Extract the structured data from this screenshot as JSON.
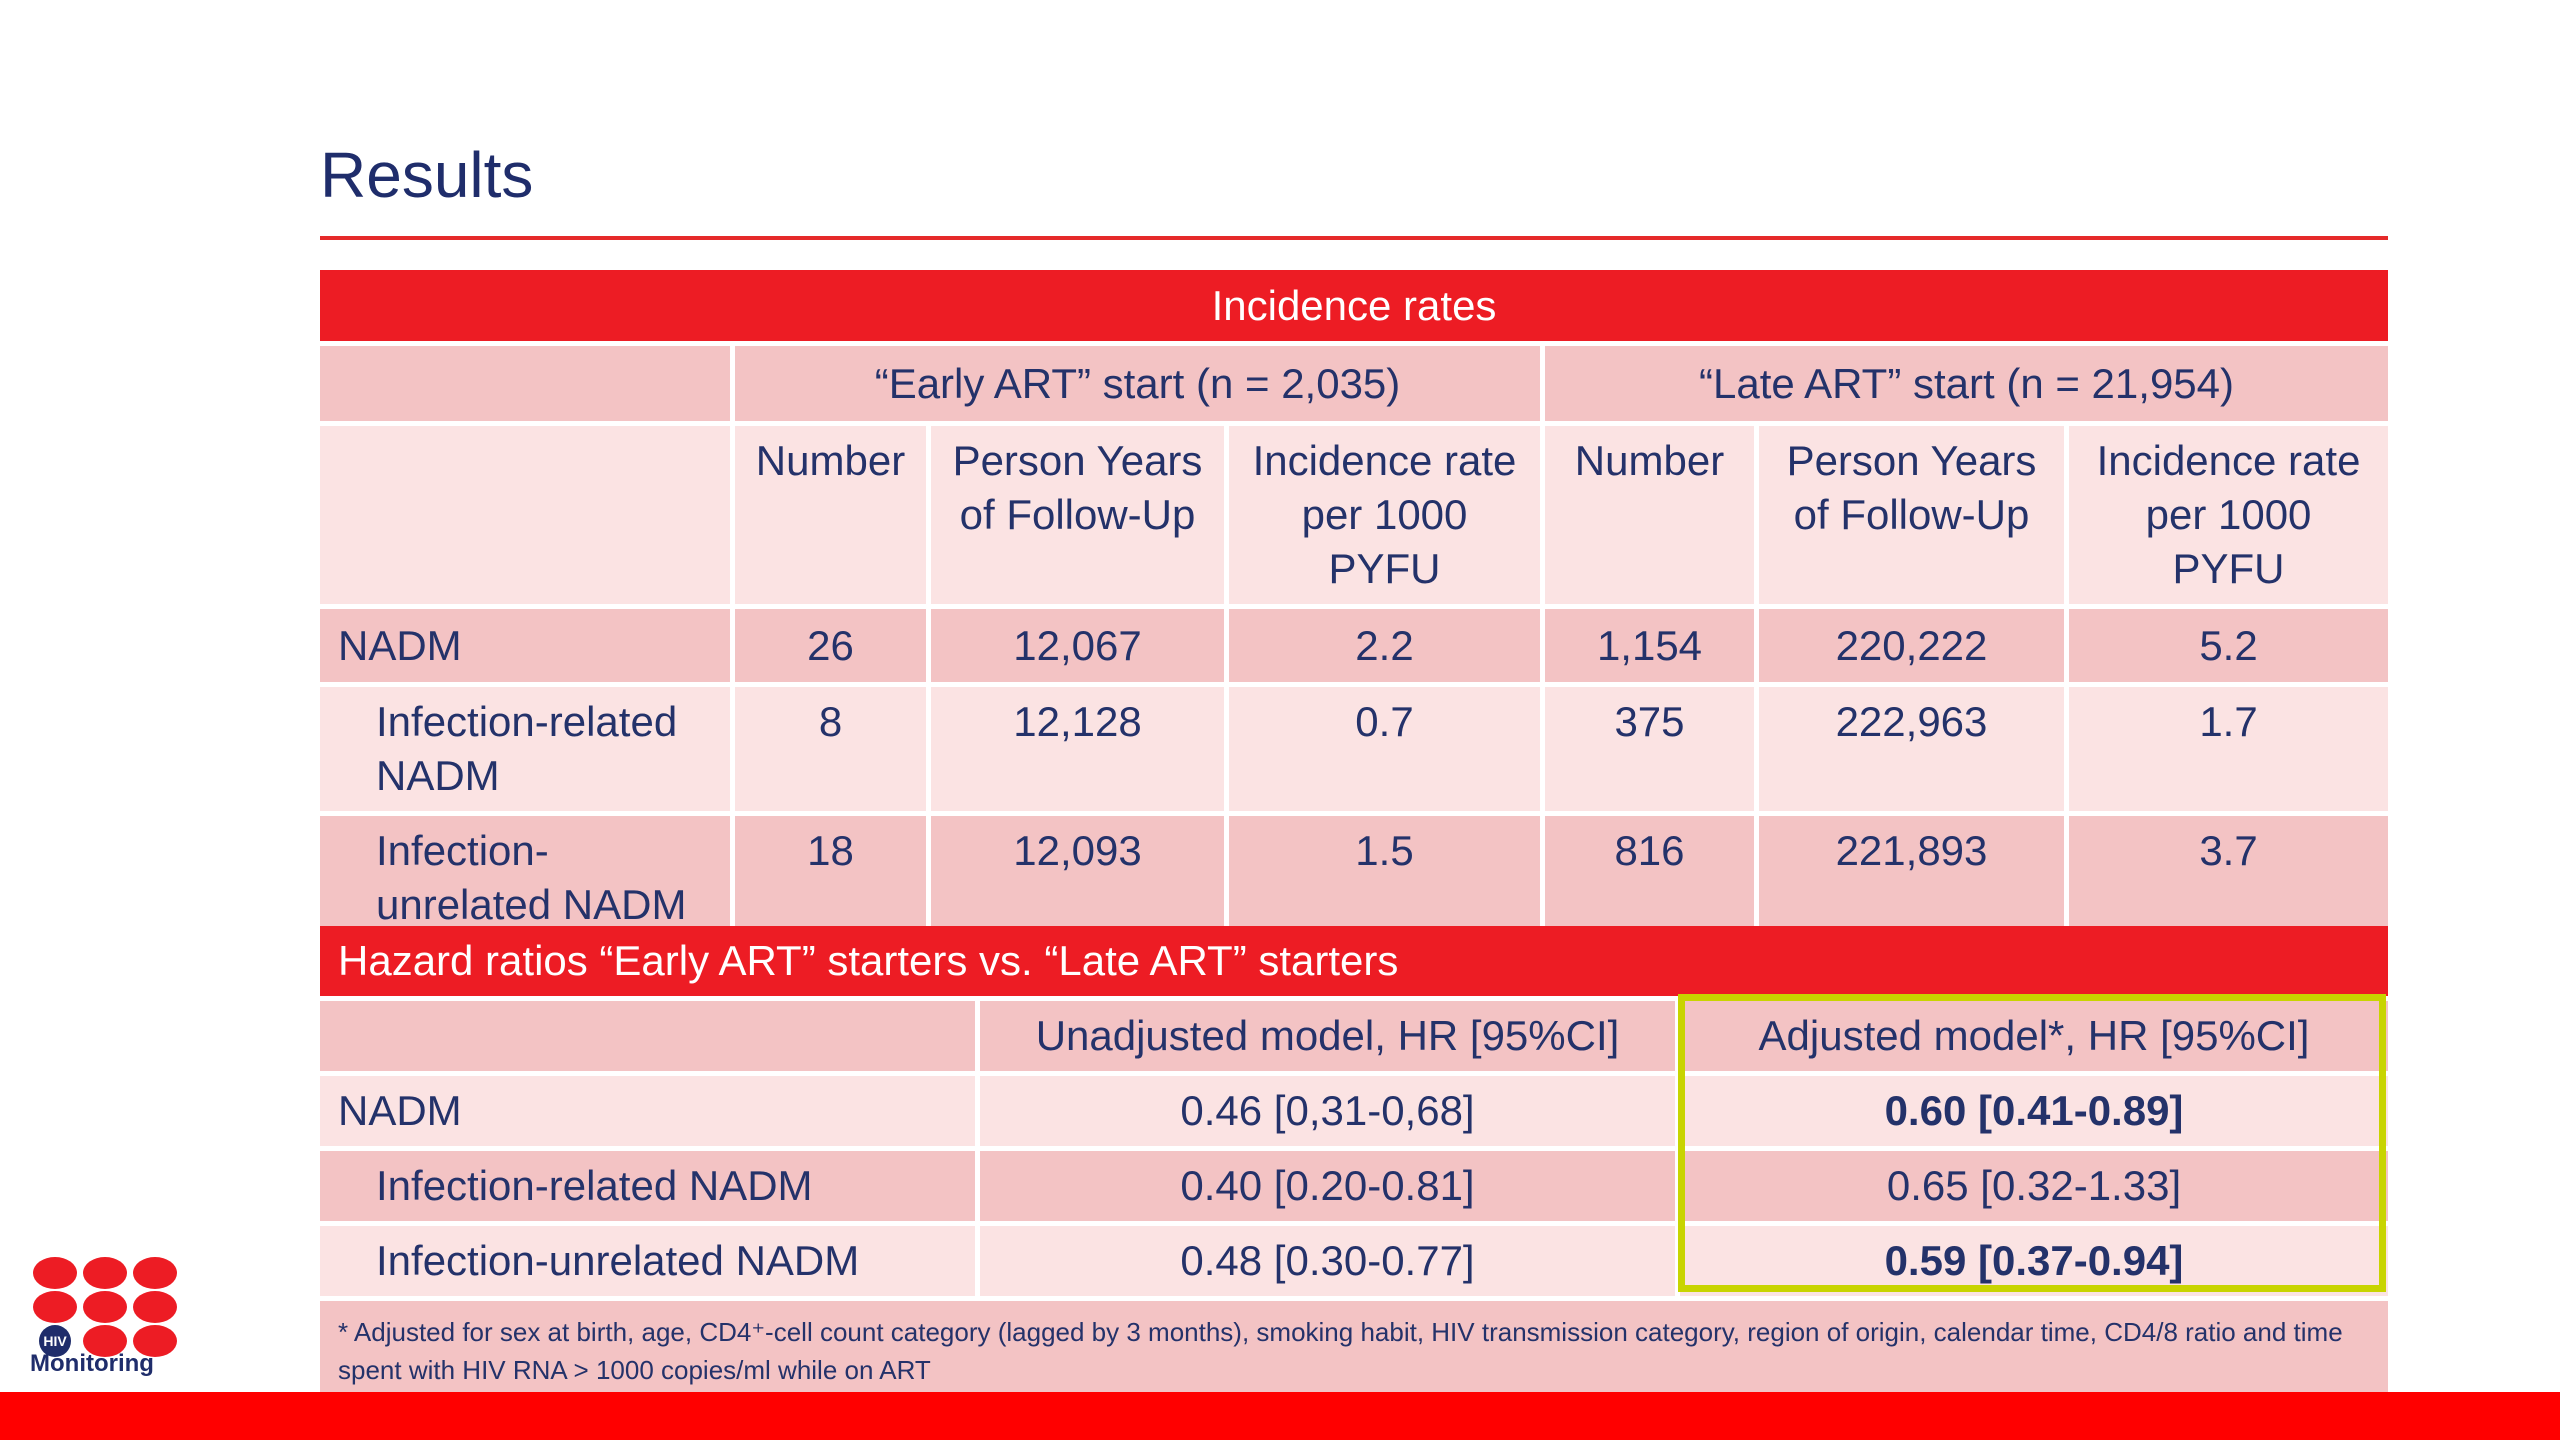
{
  "slide": {
    "title": "Results"
  },
  "incidence": {
    "header": "Incidence rates",
    "groups": [
      "“Early ART” start (n = 2,035)",
      "“Late ART” start (n = 21,954)"
    ],
    "columns": [
      "Number",
      "Person Years of Follow-Up",
      "Incidence rate per 1000 PYFU",
      "Number",
      "Person Years of Follow-Up",
      "Incidence rate per 1000 PYFU"
    ],
    "rows": [
      {
        "label": "NADM",
        "values": [
          "26",
          "12,067",
          "2.2",
          "1,154",
          "220,222",
          "5.2"
        ]
      },
      {
        "label": "Infection-related NADM",
        "values": [
          "8",
          "12,128",
          "0.7",
          "375",
          "222,963",
          "1.7"
        ]
      },
      {
        "label": "Infection-unrelated NADM",
        "values": [
          "18",
          "12,093",
          "1.5",
          "816",
          "221,893",
          "3.7"
        ]
      }
    ]
  },
  "hazard": {
    "header": "Hazard ratios “Early ART” starters vs. “Late ART” starters",
    "columns": [
      "Unadjusted model, HR [95%CI]",
      "Adjusted model*, HR [95%CI]"
    ],
    "rows": [
      {
        "label": "NADM",
        "unadjusted": "0.46 [0,31-0,68]",
        "adjusted": "0.60 [0.41-0.89]"
      },
      {
        "label": "Infection-related NADM",
        "unadjusted": "0.40 [0.20-0.81]",
        "adjusted": "0.65 [0.32-1.33]"
      },
      {
        "label": "Infection-unrelated NADM",
        "unadjusted": "0.48 [0.30-0.77]",
        "adjusted": "0.59 [0.37-0.94]"
      }
    ],
    "footnote": "* Adjusted for sex at birth, age, CD4⁺-cell count category (lagged by 3 months), smoking habit, HIV transmission category, region of origin, calendar time, CD4/8 ratio and time spent with HIV RNA > 1000 copies/ml while on ART"
  },
  "logo": {
    "badge": "HIV",
    "text": "Monitoring",
    "color": "#ed1c24"
  },
  "colors": {
    "accent": "#ed1c24",
    "highlight": "#c8d400",
    "text": "#1f2d6b"
  }
}
